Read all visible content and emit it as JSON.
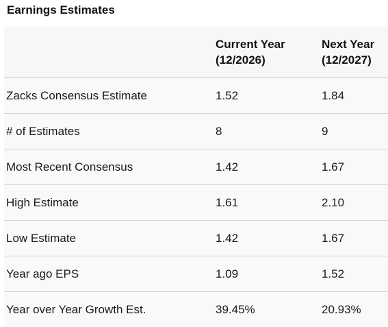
{
  "title": "Earnings Estimates",
  "columns": {
    "current": {
      "line1": "Current Year",
      "line2": "(12/2026)"
    },
    "next": {
      "line1": "Next Year",
      "line2": "(12/2027)"
    }
  },
  "rows": [
    {
      "label": "Zacks Consensus Estimate",
      "current": "1.52",
      "next": "1.84"
    },
    {
      "label": "# of Estimates",
      "current": "8",
      "next": "9"
    },
    {
      "label": "Most Recent Consensus",
      "current": "1.42",
      "next": "1.67"
    },
    {
      "label": "High Estimate",
      "current": "1.61",
      "next": "2.10"
    },
    {
      "label": "Low Estimate",
      "current": "1.42",
      "next": "1.67"
    },
    {
      "label": "Year ago EPS",
      "current": "1.09",
      "next": "1.52"
    },
    {
      "label": "Year over Year Growth Est.",
      "current": "39.45%",
      "next": "20.93%"
    }
  ]
}
